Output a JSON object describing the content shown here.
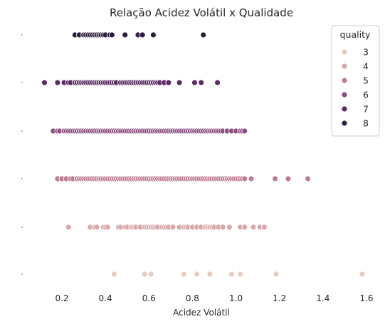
{
  "chart_data": {
    "type": "scatter",
    "title": "Relação Acidez Volátil x Qualidade",
    "xlabel": "Acidez Volátil",
    "ylabel": "",
    "xlim": [
      0.05,
      1.63
    ],
    "xticks": [
      "0.2",
      "0.4",
      "0.6",
      "0.8",
      "1.0",
      "1.2",
      "1.4",
      "1.6"
    ],
    "grid": false,
    "legend": {
      "title": "quality",
      "position": "top-right"
    },
    "series": [
      {
        "name": "3",
        "color": "#e8cbc0",
        "values": [
          0.44,
          0.58,
          0.61,
          0.76,
          0.82,
          0.88,
          0.98,
          1.02,
          1.185,
          1.58
        ]
      },
      {
        "name": "4",
        "color": "#d8a8ab",
        "values": [
          0.23,
          0.33,
          0.35,
          0.36,
          0.39,
          0.4,
          0.41,
          0.46,
          0.47,
          0.49,
          0.5,
          0.52,
          0.53,
          0.54,
          0.56,
          0.58,
          0.59,
          0.6,
          0.61,
          0.62,
          0.63,
          0.64,
          0.66,
          0.67,
          0.68,
          0.69,
          0.71,
          0.74,
          0.76,
          0.77,
          0.78,
          0.8,
          0.82,
          0.84,
          0.86,
          0.87,
          0.88,
          0.89,
          0.9,
          0.92,
          0.94,
          0.97,
          1.02,
          1.04,
          1.08,
          1.11,
          1.13
        ]
      },
      {
        "name": "5",
        "color": "#bf7c93",
        "values": [
          0.18,
          0.2,
          0.22,
          0.24,
          0.25,
          0.27,
          0.28,
          0.29,
          0.3,
          0.31,
          0.32,
          0.33,
          0.34,
          0.35,
          0.36,
          0.37,
          0.38,
          0.39,
          0.4,
          0.41,
          0.42,
          0.43,
          0.44,
          0.45,
          0.46,
          0.47,
          0.48,
          0.49,
          0.5,
          0.51,
          0.52,
          0.53,
          0.54,
          0.55,
          0.56,
          0.57,
          0.58,
          0.59,
          0.6,
          0.61,
          0.62,
          0.63,
          0.64,
          0.65,
          0.66,
          0.67,
          0.68,
          0.69,
          0.7,
          0.71,
          0.72,
          0.73,
          0.74,
          0.75,
          0.76,
          0.77,
          0.78,
          0.79,
          0.8,
          0.81,
          0.82,
          0.83,
          0.84,
          0.85,
          0.86,
          0.87,
          0.88,
          0.89,
          0.9,
          0.91,
          0.92,
          0.93,
          0.94,
          0.95,
          0.96,
          0.97,
          0.98,
          0.99,
          1.0,
          1.01,
          1.02,
          1.03,
          1.04,
          1.07,
          1.18,
          1.24,
          1.33
        ]
      },
      {
        "name": "6",
        "color": "#8c4f82",
        "values": [
          0.16,
          0.18,
          0.19,
          0.21,
          0.22,
          0.23,
          0.24,
          0.25,
          0.26,
          0.27,
          0.28,
          0.29,
          0.3,
          0.31,
          0.32,
          0.33,
          0.34,
          0.35,
          0.36,
          0.37,
          0.38,
          0.39,
          0.4,
          0.41,
          0.42,
          0.43,
          0.44,
          0.45,
          0.46,
          0.47,
          0.48,
          0.49,
          0.5,
          0.51,
          0.52,
          0.53,
          0.54,
          0.55,
          0.56,
          0.57,
          0.58,
          0.59,
          0.6,
          0.61,
          0.62,
          0.63,
          0.64,
          0.65,
          0.66,
          0.67,
          0.68,
          0.69,
          0.7,
          0.71,
          0.72,
          0.73,
          0.74,
          0.75,
          0.76,
          0.77,
          0.78,
          0.79,
          0.8,
          0.81,
          0.82,
          0.83,
          0.84,
          0.85,
          0.86,
          0.87,
          0.88,
          0.89,
          0.9,
          0.91,
          0.92,
          0.93,
          0.94,
          0.96,
          0.98,
          1.0,
          1.02,
          1.03,
          1.04
        ]
      },
      {
        "name": "7",
        "color": "#5a2c63",
        "values": [
          0.12,
          0.18,
          0.21,
          0.23,
          0.24,
          0.26,
          0.27,
          0.28,
          0.29,
          0.3,
          0.31,
          0.32,
          0.33,
          0.34,
          0.35,
          0.36,
          0.37,
          0.38,
          0.39,
          0.4,
          0.41,
          0.42,
          0.43,
          0.44,
          0.45,
          0.47,
          0.48,
          0.49,
          0.5,
          0.51,
          0.52,
          0.53,
          0.54,
          0.55,
          0.56,
          0.57,
          0.58,
          0.59,
          0.6,
          0.61,
          0.62,
          0.63,
          0.64,
          0.65,
          0.67,
          0.69,
          0.74,
          0.81,
          0.84,
          0.915
        ]
      },
      {
        "name": "8",
        "color": "#2d1e3e",
        "values": [
          0.26,
          0.28,
          0.3,
          0.31,
          0.32,
          0.33,
          0.34,
          0.35,
          0.36,
          0.37,
          0.38,
          0.39,
          0.4,
          0.42,
          0.43,
          0.49,
          0.55,
          0.57,
          0.62,
          0.85
        ]
      }
    ]
  }
}
